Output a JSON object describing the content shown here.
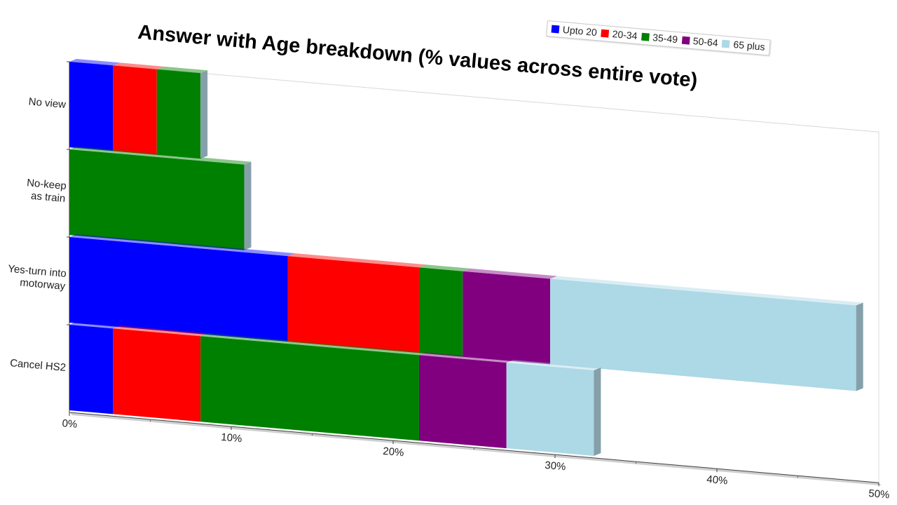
{
  "chart_data": {
    "type": "bar",
    "orientation": "horizontal",
    "stacked": true,
    "three_d": true,
    "title": "Answer with Age breakdown (% values across entire vote)",
    "categories": [
      "No view",
      "No-keep as train",
      "Yes-turn into motorway",
      "Cancel HS2"
    ],
    "category_labels": [
      [
        "No view"
      ],
      [
        "No-keep",
        "as train"
      ],
      [
        "Yes-turn into",
        "motorway"
      ],
      [
        "Cancel HS2"
      ]
    ],
    "series": [
      {
        "name": "Upto 20",
        "color": "#0000ff",
        "values": [
          2.7,
          0,
          13.5,
          2.7
        ]
      },
      {
        "name": "20-34",
        "color": "#ff0000",
        "values": [
          2.7,
          0,
          8.1,
          5.4
        ]
      },
      {
        "name": "35-49",
        "color": "#008000",
        "values": [
          2.7,
          10.8,
          2.7,
          13.5
        ]
      },
      {
        "name": "50-64",
        "color": "#800080",
        "values": [
          0,
          0,
          5.4,
          5.4
        ]
      },
      {
        "name": "65 plus",
        "color": "#add8e6",
        "values": [
          0,
          0,
          18.9,
          5.4
        ]
      }
    ],
    "xlim": [
      0,
      50
    ],
    "x_ticks": [
      "0%",
      "10%",
      "20%",
      "30%",
      "40%",
      "50%"
    ],
    "legend_position": "top-right",
    "grid": false
  }
}
